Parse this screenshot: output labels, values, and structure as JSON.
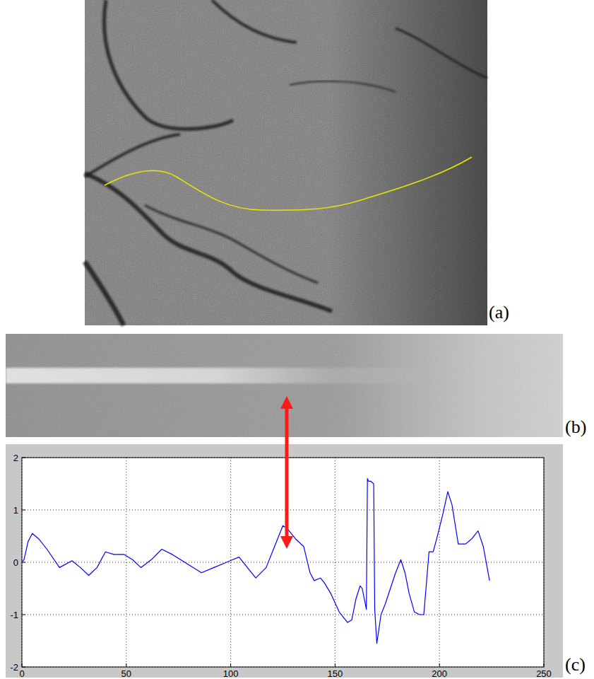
{
  "panels": [
    "(a)",
    "(b)",
    "(c)"
  ],
  "chart_data": {
    "type": "line",
    "color": "#0000ff",
    "grid": true,
    "x": [
      0,
      1,
      3,
      5,
      8,
      12,
      18,
      24,
      28,
      32,
      36,
      40,
      44,
      49,
      53,
      57,
      62,
      67,
      72,
      78,
      86,
      92,
      98,
      101,
      104,
      108,
      112,
      117,
      121,
      125,
      127,
      131,
      135,
      138,
      140,
      143,
      145,
      148,
      152,
      156,
      158,
      160,
      162,
      163,
      165,
      165.5,
      166,
      167,
      168.5,
      169,
      170,
      172,
      174,
      176.5,
      179,
      181.5,
      183.5,
      185.5,
      188,
      190.5,
      192.5,
      195,
      197,
      199,
      201.5,
      204,
      206,
      209,
      212.5,
      215.5,
      218.5,
      221,
      224
    ],
    "values": [
      0,
      0.05,
      0.4,
      0.55,
      0.45,
      0.25,
      -0.1,
      0.03,
      -0.1,
      -0.25,
      -0.1,
      0.2,
      0.15,
      0.15,
      0.05,
      -0.1,
      0.05,
      0.25,
      0.15,
      0.0,
      -0.2,
      -0.1,
      0.0,
      0.05,
      0.1,
      -0.1,
      -0.3,
      -0.1,
      0.3,
      0.7,
      0.65,
      0.45,
      0.3,
      -0.2,
      -0.35,
      -0.3,
      -0.4,
      -0.6,
      -0.95,
      -1.15,
      -1.1,
      -0.7,
      -0.45,
      -0.5,
      -0.9,
      1.6,
      1.55,
      1.55,
      1.5,
      -0.9,
      -1.55,
      -1.0,
      -0.8,
      -0.5,
      -0.2,
      0.05,
      -0.2,
      -0.6,
      -0.95,
      -1.0,
      -1.0,
      0.2,
      0.2,
      0.5,
      0.9,
      1.35,
      1.1,
      0.35,
      0.35,
      0.45,
      0.6,
      0.3,
      -0.35
    ],
    "xlim": [
      0,
      250
    ],
    "ylim": [
      -2,
      2
    ],
    "xticks": [
      0,
      50,
      100,
      150,
      200,
      250
    ],
    "yticks": [
      -2,
      -1,
      0,
      1,
      2
    ]
  }
}
